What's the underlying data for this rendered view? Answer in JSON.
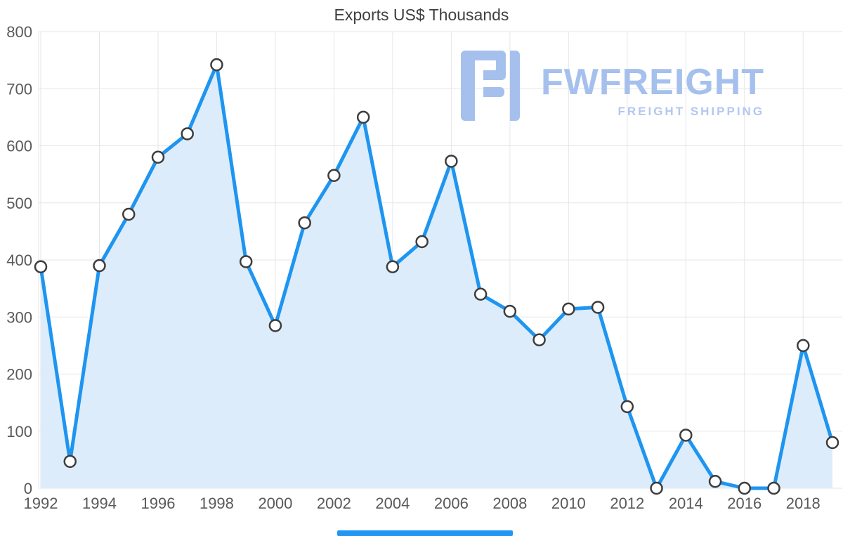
{
  "title": "Exports US$ Thousands",
  "watermark": {
    "brand": "FWFREIGHT",
    "tagline": "FREIGHT SHIPPING",
    "color": "#a6c0ee"
  },
  "scrollbar": {
    "present": true,
    "color": "#2196f3"
  },
  "chart_data": {
    "type": "area",
    "title": "Exports US$ Thousands",
    "x": [
      1992,
      1993,
      1994,
      1995,
      1996,
      1997,
      1998,
      1999,
      2000,
      2001,
      2002,
      2003,
      2004,
      2005,
      2006,
      2007,
      2008,
      2009,
      2010,
      2011,
      2012,
      2013,
      2014,
      2015,
      2016,
      2017,
      2018,
      2019
    ],
    "values": [
      388,
      47,
      390,
      480,
      580,
      621,
      742,
      397,
      285,
      465,
      548,
      650,
      388,
      432,
      573,
      340,
      310,
      260,
      314,
      317,
      143,
      0,
      93,
      12,
      0,
      0,
      250,
      80
    ],
    "xticks": [
      1992,
      1994,
      1996,
      1998,
      2000,
      2002,
      2004,
      2006,
      2008,
      2010,
      2012,
      2014,
      2016,
      2018
    ],
    "ylim": [
      0,
      800
    ],
    "ytick_step": 100,
    "xlabel": "",
    "ylabel": "",
    "grid": true,
    "legend": "none",
    "line_color": "#1e95f0",
    "fill_color": "#ddecfb",
    "marker_fill": "#ffffff",
    "marker_stroke": "#3d3d3d",
    "grid_color": "#e6e6e6",
    "axis_text_color": "#595959"
  }
}
